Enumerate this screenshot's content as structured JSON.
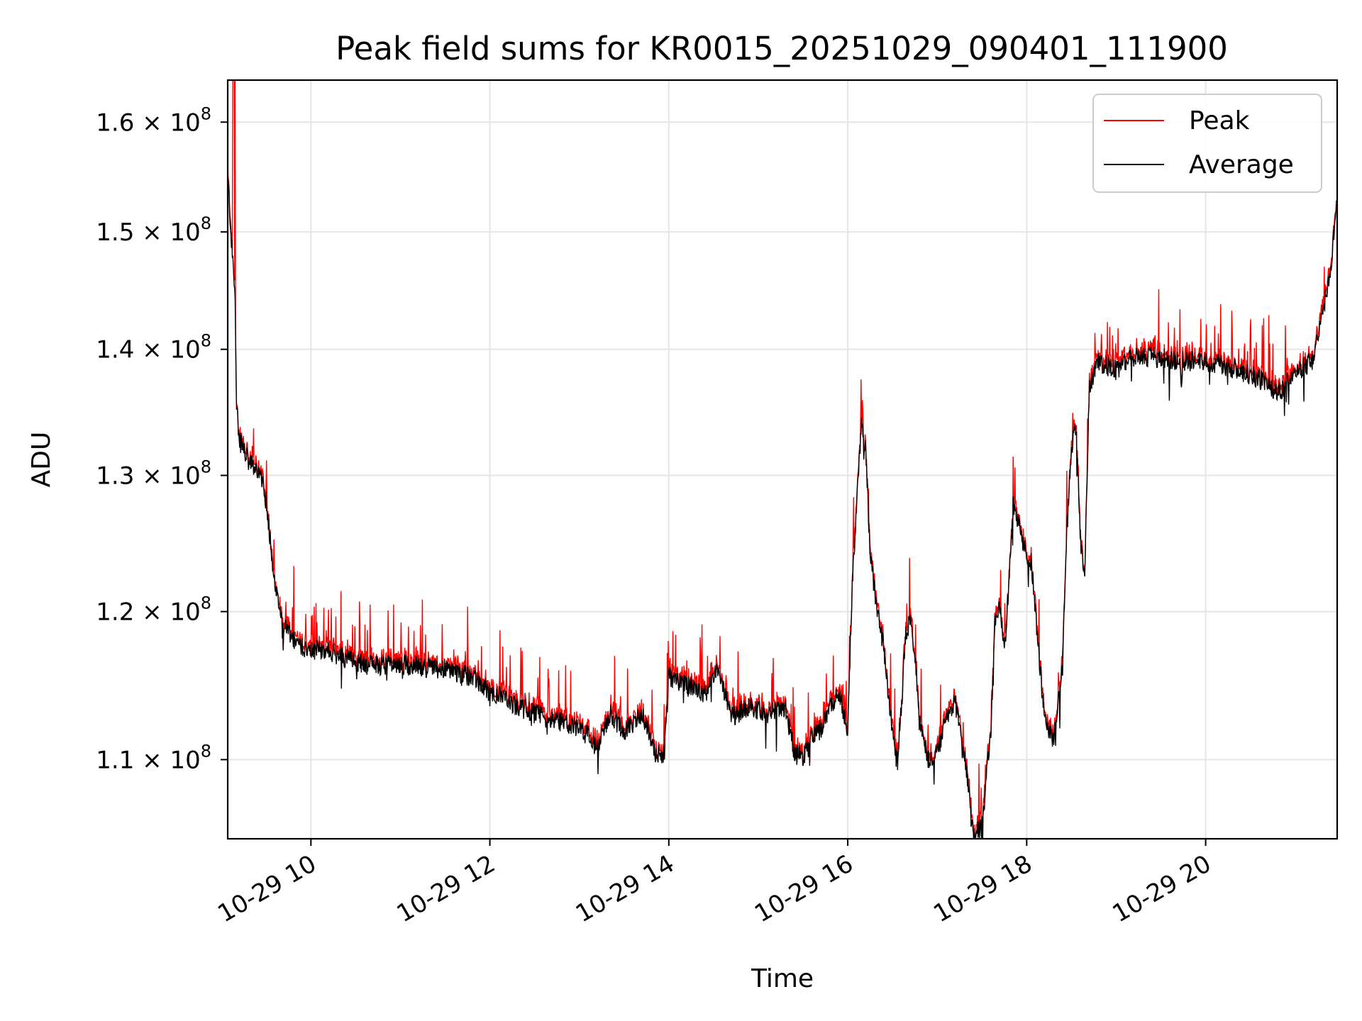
{
  "chart_data": {
    "type": "line",
    "title": "Peak field sums for KR0015_20251029_090401_111900",
    "xlabel": "Time",
    "ylabel": "ADU",
    "yscale": "log",
    "ylim": [
      105000000,
      164000000
    ],
    "xlim_hours": [
      9.07,
      21.47
    ],
    "grid": true,
    "legend_position": "upper-right",
    "yticks": [
      {
        "value": 110000000,
        "base": "1.1 × 10",
        "exp": "8"
      },
      {
        "value": 120000000,
        "base": "1.2 × 10",
        "exp": "8"
      },
      {
        "value": 130000000,
        "base": "1.3 × 10",
        "exp": "8"
      },
      {
        "value": 140000000,
        "base": "1.4 × 10",
        "exp": "8"
      },
      {
        "value": 150000000,
        "base": "1.5 × 10",
        "exp": "8"
      },
      {
        "value": 160000000,
        "base": "1.6 × 10",
        "exp": "8"
      }
    ],
    "xticks": [
      {
        "hour": 10,
        "label": "10-29 10"
      },
      {
        "hour": 12,
        "label": "10-29 12"
      },
      {
        "hour": 14,
        "label": "10-29 14"
      },
      {
        "hour": 16,
        "label": "10-29 16"
      },
      {
        "hour": 18,
        "label": "10-29 18"
      },
      {
        "hour": 20,
        "label": "10-29 20"
      }
    ],
    "series": [
      {
        "name": "Peak",
        "color": "#ff0000"
      },
      {
        "name": "Average",
        "color": "#000000"
      }
    ],
    "average_keypoints": {
      "hours": [
        9.07,
        9.12,
        9.15,
        9.17,
        9.2,
        9.3,
        9.4,
        9.45,
        9.5,
        9.55,
        9.6,
        9.7,
        9.8,
        9.9,
        10.0,
        10.3,
        10.6,
        11.0,
        11.5,
        11.8,
        12.0,
        12.3,
        12.6,
        12.9,
        13.1,
        13.2,
        13.35,
        13.5,
        13.7,
        13.85,
        13.95,
        14.0,
        14.2,
        14.4,
        14.55,
        14.7,
        14.9,
        15.1,
        15.3,
        15.4,
        15.5,
        15.6,
        15.7,
        15.9,
        16.0,
        16.05,
        16.1,
        16.15,
        16.2,
        16.25,
        16.3,
        16.4,
        16.45,
        16.5,
        16.55,
        16.6,
        16.65,
        16.7,
        16.75,
        16.8,
        16.9,
        17.0,
        17.1,
        17.2,
        17.3,
        17.35,
        17.4,
        17.5,
        17.6,
        17.65,
        17.7,
        17.75,
        17.8,
        17.85,
        17.9,
        18.0,
        18.05,
        18.1,
        18.15,
        18.2,
        18.3,
        18.4,
        18.45,
        18.5,
        18.55,
        18.6,
        18.65,
        18.7,
        18.8,
        19.0,
        19.2,
        19.5,
        19.8,
        20.0,
        20.2,
        20.4,
        20.6,
        20.8,
        21.0,
        21.2,
        21.3,
        21.4,
        21.47
      ],
      "values": [
        155000000,
        148000000,
        145000000,
        135000000,
        133000000,
        131000000,
        130500000,
        129500000,
        128000000,
        125000000,
        121500000,
        119000000,
        118000000,
        117500000,
        117500000,
        117000000,
        116300000,
        116300000,
        116000000,
        115500000,
        114500000,
        113500000,
        112800000,
        112300000,
        111600000,
        110700000,
        113000000,
        111800000,
        113000000,
        110500000,
        110200000,
        115500000,
        115000000,
        114300000,
        116000000,
        112800000,
        113500000,
        113000000,
        113500000,
        110500000,
        110200000,
        111500000,
        112000000,
        114500000,
        112000000,
        122000000,
        127500000,
        134000000,
        132000000,
        124000000,
        121500000,
        117500000,
        114500000,
        112000000,
        109800000,
        113500000,
        118500000,
        119500000,
        117000000,
        112500000,
        110000000,
        110500000,
        112500000,
        113800000,
        110500000,
        108300000,
        105300000,
        105700000,
        112000000,
        119500000,
        120500000,
        117000000,
        122000000,
        128000000,
        126500000,
        124000000,
        123500000,
        120000000,
        116000000,
        112700000,
        111300000,
        116000000,
        126000000,
        132000000,
        134000000,
        125000000,
        122500000,
        137000000,
        139000000,
        138300000,
        139500000,
        139300000,
        139000000,
        139000000,
        138700000,
        138200000,
        137600000,
        136400000,
        138000000,
        139200000,
        143000000,
        146500000,
        153500000
      ]
    }
  }
}
